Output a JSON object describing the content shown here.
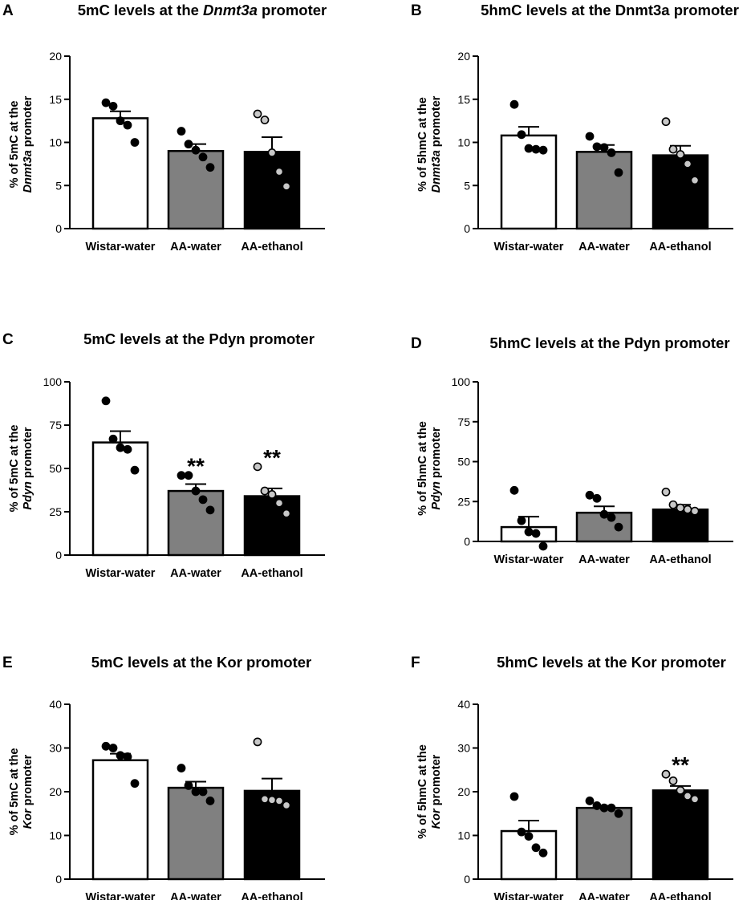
{
  "panels": [
    {
      "letter": "A",
      "title_parts": [
        {
          "text": "5mC levels at the ",
          "italic": false
        },
        {
          "text": "Dnmt3a",
          "italic": true
        },
        {
          "text": " promoter",
          "italic": false
        }
      ],
      "ylabel_lines": [
        [
          {
            "text": "% of 5mC at the",
            "italic": false
          }
        ],
        [
          {
            "text": "Dnmt3a",
            "italic": true
          },
          {
            "text": " promoter",
            "italic": false
          }
        ]
      ]
    },
    {
      "letter": "B",
      "title_parts": [
        {
          "text": "5hmC levels at the Dnmt3a promoter",
          "italic": false
        }
      ],
      "ylabel_lines": [
        [
          {
            "text": "% of 5hmC at the",
            "italic": false
          }
        ],
        [
          {
            "text": "Dnmt3a",
            "italic": true
          },
          {
            "text": " promoter",
            "italic": false
          }
        ]
      ]
    },
    {
      "letter": "C",
      "title_parts": [
        {
          "text": "5mC levels at the Pdyn promoter",
          "italic": false
        }
      ],
      "ylabel_lines": [
        [
          {
            "text": "% of 5mC at the",
            "italic": false
          }
        ],
        [
          {
            "text": "Pdyn",
            "italic": true
          },
          {
            "text": " promoter",
            "italic": false
          }
        ]
      ]
    },
    {
      "letter": "D",
      "title_parts": [
        {
          "text": "5hmC levels at the Pdyn promoter",
          "italic": false
        }
      ],
      "ylabel_lines": [
        [
          {
            "text": "% of 5hmC at the",
            "italic": false
          }
        ],
        [
          {
            "text": "Pdyn",
            "italic": true
          },
          {
            "text": " promoter",
            "italic": false
          }
        ]
      ]
    },
    {
      "letter": "E",
      "title_parts": [
        {
          "text": "5mC levels at the Kor promoter",
          "italic": false
        }
      ],
      "ylabel_lines": [
        [
          {
            "text": "% of 5mC at the",
            "italic": false
          }
        ],
        [
          {
            "text": "Kor",
            "italic": true
          },
          {
            "text": " promoter",
            "italic": false
          }
        ]
      ]
    },
    {
      "letter": "F",
      "title_parts": [
        {
          "text": "5hmC levels at the Kor promoter",
          "italic": false
        }
      ],
      "ylabel_lines": [
        [
          {
            "text": "% of 5hmC at the",
            "italic": false
          }
        ],
        [
          {
            "text": "Kor",
            "italic": true
          },
          {
            "text": " promoter",
            "italic": false
          }
        ]
      ]
    }
  ],
  "colors": {
    "wistar_bar": "#ffffff",
    "aa_water_bar": "#808080",
    "aa_ethanol_bar": "#000000",
    "dot_dark": "#000000",
    "dot_light": "#c8c8c8",
    "axis": "#000000"
  },
  "chart_data": [
    {
      "type": "bar",
      "title": "5mC levels at the Dnmt3a promoter",
      "xlabel": "",
      "ylabel": "% of 5mC at the Dnmt3a promoter",
      "ylim": [
        0,
        20
      ],
      "yticks": [
        0,
        5,
        10,
        15,
        20
      ],
      "categories": [
        "Wistar-water",
        "AA-water",
        "AA-ethanol"
      ],
      "values": [
        12.8,
        9.0,
        8.9
      ],
      "sem": [
        0.8,
        0.8,
        1.7
      ],
      "points": [
        [
          14.6,
          14.2,
          12.5,
          12.0,
          10.0
        ],
        [
          11.3,
          9.8,
          9.1,
          8.3,
          7.1
        ],
        [
          13.3,
          12.6,
          8.8,
          6.6,
          4.9
        ]
      ],
      "significance": [
        "",
        "",
        ""
      ]
    },
    {
      "type": "bar",
      "title": "5hmC levels at the Dnmt3a promoter",
      "xlabel": "",
      "ylabel": "% of 5hmC at the Dnmt3a promoter",
      "ylim": [
        0,
        20
      ],
      "yticks": [
        0,
        5,
        10,
        15,
        20
      ],
      "categories": [
        "Wistar-water",
        "AA-water",
        "AA-ethanol"
      ],
      "values": [
        10.8,
        8.9,
        8.5
      ],
      "sem": [
        1.0,
        0.8,
        1.1
      ],
      "points": [
        [
          14.4,
          10.9,
          9.3,
          9.2,
          9.1
        ],
        [
          10.7,
          9.5,
          9.4,
          8.8,
          6.5
        ],
        [
          12.4,
          9.2,
          8.6,
          7.5,
          5.6
        ]
      ],
      "significance": [
        "",
        "",
        ""
      ]
    },
    {
      "type": "bar",
      "title": "5mC levels at the Pdyn promoter",
      "xlabel": "",
      "ylabel": "% of 5mC at the Pdyn promoter",
      "ylim": [
        0,
        100
      ],
      "yticks": [
        0,
        25,
        50,
        75,
        100
      ],
      "categories": [
        "Wistar-water",
        "AA-water",
        "AA-ethanol"
      ],
      "values": [
        65,
        37,
        34
      ],
      "sem": [
        6.5,
        4.0,
        4.5
      ],
      "points": [
        [
          89,
          67,
          62,
          61,
          49
        ],
        [
          46,
          46,
          37,
          32,
          26
        ],
        [
          51,
          37,
          35,
          30,
          24
        ]
      ],
      "significance": [
        "",
        "**",
        "**"
      ]
    },
    {
      "type": "bar",
      "title": "5hmC levels at the Pdyn promoter",
      "xlabel": "",
      "ylabel": "% of 5hmC at the Pdyn promoter",
      "ylim": [
        0,
        100
      ],
      "yticks": [
        0,
        25,
        50,
        75,
        100
      ],
      "categories": [
        "Wistar-water",
        "AA-water",
        "AA-ethanol"
      ],
      "values": [
        9,
        18,
        20
      ],
      "sem": [
        6.5,
        4.0,
        3.0
      ],
      "points": [
        [
          32,
          13,
          6,
          5,
          -3
        ],
        [
          29,
          27,
          17,
          15,
          9
        ],
        [
          31,
          23,
          21,
          20,
          19
        ]
      ],
      "significance": [
        "",
        "",
        ""
      ]
    },
    {
      "type": "bar",
      "title": "5mC levels at the Kor promoter",
      "xlabel": "",
      "ylabel": "% of 5mC at the Kor promoter",
      "ylim": [
        0,
        40
      ],
      "yticks": [
        0,
        10,
        20,
        30,
        40
      ],
      "categories": [
        "Wistar-water",
        "AA-water",
        "AA-ethanol"
      ],
      "values": [
        27.2,
        20.9,
        20.2
      ],
      "sem": [
        1.5,
        1.4,
        2.8
      ],
      "points": [
        [
          30.4,
          30.0,
          28.3,
          28.0,
          21.9
        ],
        [
          25.4,
          21.4,
          20.0,
          20.0,
          17.9
        ],
        [
          31.4,
          18.3,
          18.1,
          17.9,
          16.9
        ]
      ],
      "significance": [
        "",
        "",
        ""
      ]
    },
    {
      "type": "bar",
      "title": "5hmC levels at the Kor promoter",
      "xlabel": "",
      "ylabel": "% of 5hmC at the Kor promoter",
      "ylim": [
        0,
        40
      ],
      "yticks": [
        0,
        10,
        20,
        30,
        40
      ],
      "categories": [
        "Wistar-water",
        "AA-water",
        "AA-ethanol"
      ],
      "values": [
        11.0,
        16.3,
        20.3
      ],
      "sem": [
        2.4,
        0.5,
        1.0
      ],
      "points": [
        [
          18.9,
          10.8,
          9.8,
          7.2,
          6.0
        ],
        [
          17.9,
          16.8,
          16.3,
          16.3,
          15.0
        ],
        [
          24.0,
          22.5,
          20.3,
          19.0,
          18.3
        ]
      ],
      "significance": [
        "",
        "",
        "**"
      ]
    }
  ]
}
